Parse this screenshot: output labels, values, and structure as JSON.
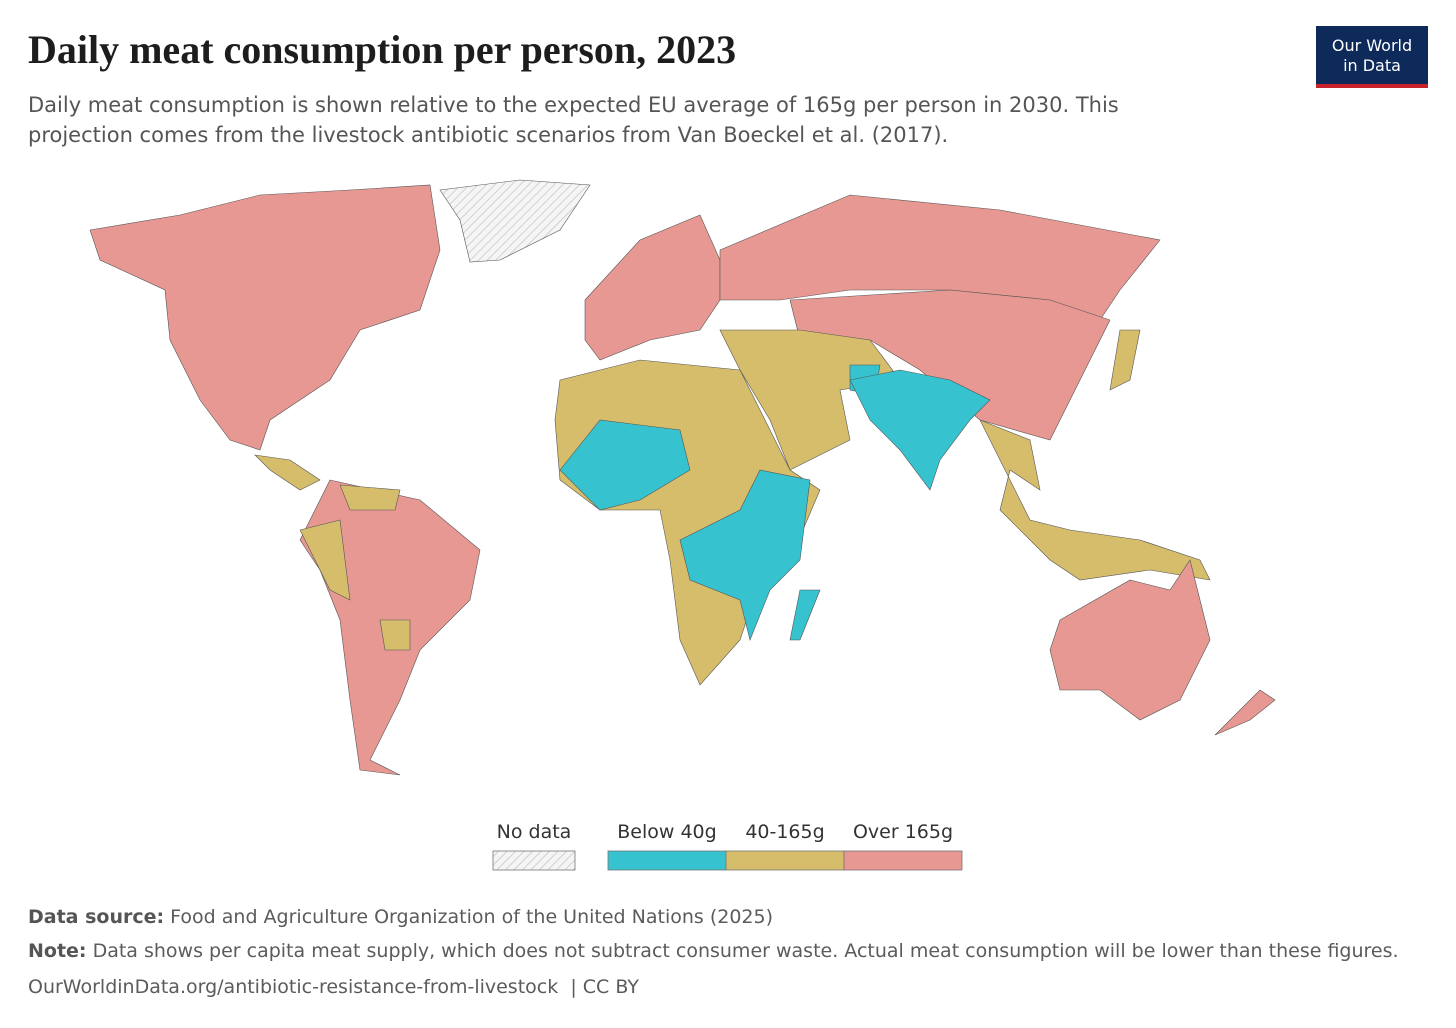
{
  "header": {
    "title": "Daily meat consumption per person, 2023",
    "subtitle": "Daily meat consumption is shown relative to the expected EU average of 165g per person in 2030. This projection comes from the livestock antibiotic scenarios from Van Boeckel et al. (2017).",
    "logo": [
      "Our World",
      "in Data"
    ]
  },
  "legend": {
    "items": [
      {
        "label": "No data",
        "color": "#f2f2f2"
      },
      {
        "label": "Below 40g",
        "color": "#36c3cf"
      },
      {
        "label": "40-165g",
        "color": "#d5bd6c"
      },
      {
        "label": "Over 165g",
        "color": "#e89893"
      }
    ]
  },
  "footer": {
    "source": {
      "label": "Data source:",
      "text": "Food and Agriculture Organization of the United Nations (2025)"
    },
    "note": {
      "label": "Note:",
      "text": "Data shows per capita meat supply, which does not subtract consumer waste. Actual meat consumption will be lower than these figures."
    },
    "url": "OurWorldinData.org/antibiotic-resistance-from-livestock",
    "license": "| CC BY"
  }
}
